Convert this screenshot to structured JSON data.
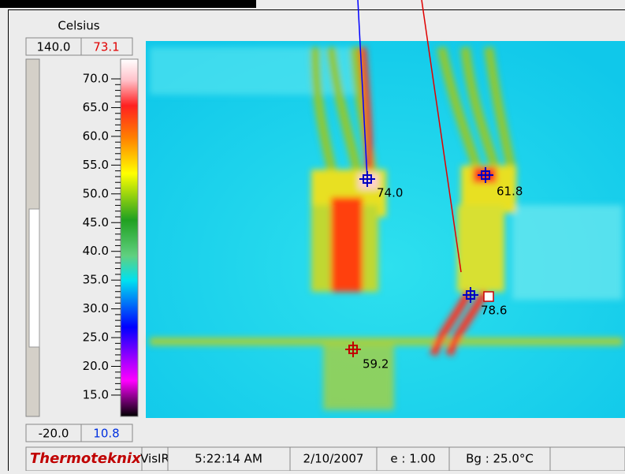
{
  "scale": {
    "unit": "Celsius",
    "max": "140.0",
    "current_max": "73.1",
    "min": "-20.0",
    "current_min": "10.8",
    "ticks": [
      "70.0",
      "65.0",
      "60.0",
      "55.0",
      "50.0",
      "45.0",
      "40.0",
      "35.0",
      "30.0",
      "25.0",
      "20.0",
      "15.0"
    ]
  },
  "markers": [
    "74.0",
    "61.8",
    "78.6",
    "59.2"
  ],
  "status_bar": {
    "brand": "Thermoteknix",
    "mode": "VisIR",
    "time": "5:22:14 AM",
    "date": "2/10/2007",
    "emissivity": "e : 1.00",
    "background": "Bg : 25.0°C"
  }
}
